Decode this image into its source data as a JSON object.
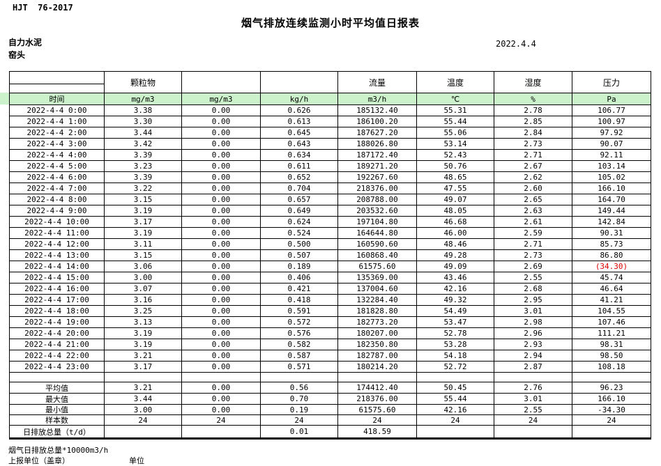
{
  "page": {
    "standard_no": "HJT  76-2017",
    "title": "烟气排放连续监测小时平均值日报表",
    "company": "自力水泥",
    "station": "窑头",
    "date": "2022.4.4"
  },
  "colors": {
    "header_green": "#ccf2cc",
    "negative_red": "#e00000",
    "border_black": "#000000"
  },
  "table": {
    "header": {
      "groups": [
        "",
        "颗粒物",
        "",
        "",
        "流量",
        "温度",
        "湿度",
        "压力"
      ],
      "units": [
        "时间",
        "mg/m3",
        "mg/m3",
        "kg/h",
        "m3/h",
        "℃",
        "%",
        "Pa"
      ]
    },
    "rows": [
      [
        "2022-4-4 0:00",
        "3.38",
        "0.00",
        "0.626",
        "185132.40",
        "55.31",
        "2.78",
        "106.77"
      ],
      [
        "2022-4-4 1:00",
        "3.30",
        "0.00",
        "0.613",
        "186100.20",
        "55.44",
        "2.85",
        "100.97"
      ],
      [
        "2022-4-4 2:00",
        "3.44",
        "0.00",
        "0.645",
        "187627.20",
        "55.06",
        "2.84",
        "97.92"
      ],
      [
        "2022-4-4 3:00",
        "3.42",
        "0.00",
        "0.643",
        "188026.80",
        "53.14",
        "2.73",
        "90.07"
      ],
      [
        "2022-4-4 4:00",
        "3.39",
        "0.00",
        "0.634",
        "187172.40",
        "52.43",
        "2.71",
        "92.11"
      ],
      [
        "2022-4-4 5:00",
        "3.23",
        "0.00",
        "0.611",
        "189271.20",
        "50.76",
        "2.67",
        "103.14"
      ],
      [
        "2022-4-4 6:00",
        "3.39",
        "0.00",
        "0.652",
        "192267.60",
        "48.65",
        "2.62",
        "105.02"
      ],
      [
        "2022-4-4 7:00",
        "3.22",
        "0.00",
        "0.704",
        "218376.00",
        "47.55",
        "2.60",
        "166.10"
      ],
      [
        "2022-4-4 8:00",
        "3.15",
        "0.00",
        "0.657",
        "208788.00",
        "49.07",
        "2.65",
        "164.70"
      ],
      [
        "2022-4-4 9:00",
        "3.19",
        "0.00",
        "0.649",
        "203532.60",
        "48.05",
        "2.63",
        "149.44"
      ],
      [
        "2022-4-4 10:00",
        "3.17",
        "0.00",
        "0.624",
        "197104.80",
        "46.68",
        "2.61",
        "142.84"
      ],
      [
        "2022-4-4 11:00",
        "3.19",
        "0.00",
        "0.524",
        "164644.80",
        "46.00",
        "2.59",
        "90.31"
      ],
      [
        "2022-4-4 12:00",
        "3.11",
        "0.00",
        "0.500",
        "160590.60",
        "48.46",
        "2.71",
        "85.73"
      ],
      [
        "2022-4-4 13:00",
        "3.15",
        "0.00",
        "0.507",
        "160868.40",
        "49.28",
        "2.73",
        "86.80"
      ],
      [
        "2022-4-4 14:00",
        "3.06",
        "0.00",
        "0.189",
        "61575.60",
        "49.09",
        "2.69",
        "(34.30)"
      ],
      [
        "2022-4-4 15:00",
        "3.00",
        "0.00",
        "0.406",
        "135369.00",
        "43.46",
        "2.55",
        "45.74"
      ],
      [
        "2022-4-4 16:00",
        "3.07",
        "0.00",
        "0.421",
        "137004.60",
        "42.16",
        "2.68",
        "46.64"
      ],
      [
        "2022-4-4 17:00",
        "3.16",
        "0.00",
        "0.418",
        "132284.40",
        "49.32",
        "2.95",
        "41.21"
      ],
      [
        "2022-4-4 18:00",
        "3.25",
        "0.00",
        "0.591",
        "181828.80",
        "54.49",
        "3.01",
        "104.55"
      ],
      [
        "2022-4-4 19:00",
        "3.13",
        "0.00",
        "0.572",
        "182773.20",
        "53.47",
        "2.98",
        "107.46"
      ],
      [
        "2022-4-4 20:00",
        "3.19",
        "0.00",
        "0.576",
        "180207.00",
        "52.78",
        "2.96",
        "111.21"
      ],
      [
        "2022-4-4 21:00",
        "3.19",
        "0.00",
        "0.582",
        "182350.80",
        "53.28",
        "2.93",
        "98.31"
      ],
      [
        "2022-4-4 22:00",
        "3.21",
        "0.00",
        "0.587",
        "182787.00",
        "54.18",
        "2.94",
        "98.50"
      ],
      [
        "2022-4-4 23:00",
        "3.17",
        "0.00",
        "0.571",
        "180214.20",
        "52.72",
        "2.87",
        "108.18"
      ]
    ],
    "red_cells": [
      {
        "row": 14,
        "col": 7
      }
    ],
    "summary": [
      [
        "平均值",
        "3.21",
        "0.00",
        "0.56",
        "174412.40",
        "50.45",
        "2.76",
        "96.23"
      ],
      [
        "最大值",
        "3.44",
        "0.00",
        "0.70",
        "218376.00",
        "55.44",
        "3.01",
        "166.10"
      ],
      [
        "最小值",
        "3.00",
        "0.00",
        "0.19",
        "61575.60",
        "42.16",
        "2.55",
        "-34.30"
      ],
      [
        "样本数",
        "24",
        "24",
        "24",
        "24",
        "24",
        "24",
        "24"
      ],
      [
        "日排放总量（t/d）",
        "",
        "",
        "0.01",
        "418.59",
        "",
        "",
        ""
      ]
    ]
  },
  "footer": {
    "note": "烟气日排放总量*10000m3/h",
    "report_unit": "上报单位（盖章）",
    "unit_label": "单位"
  }
}
